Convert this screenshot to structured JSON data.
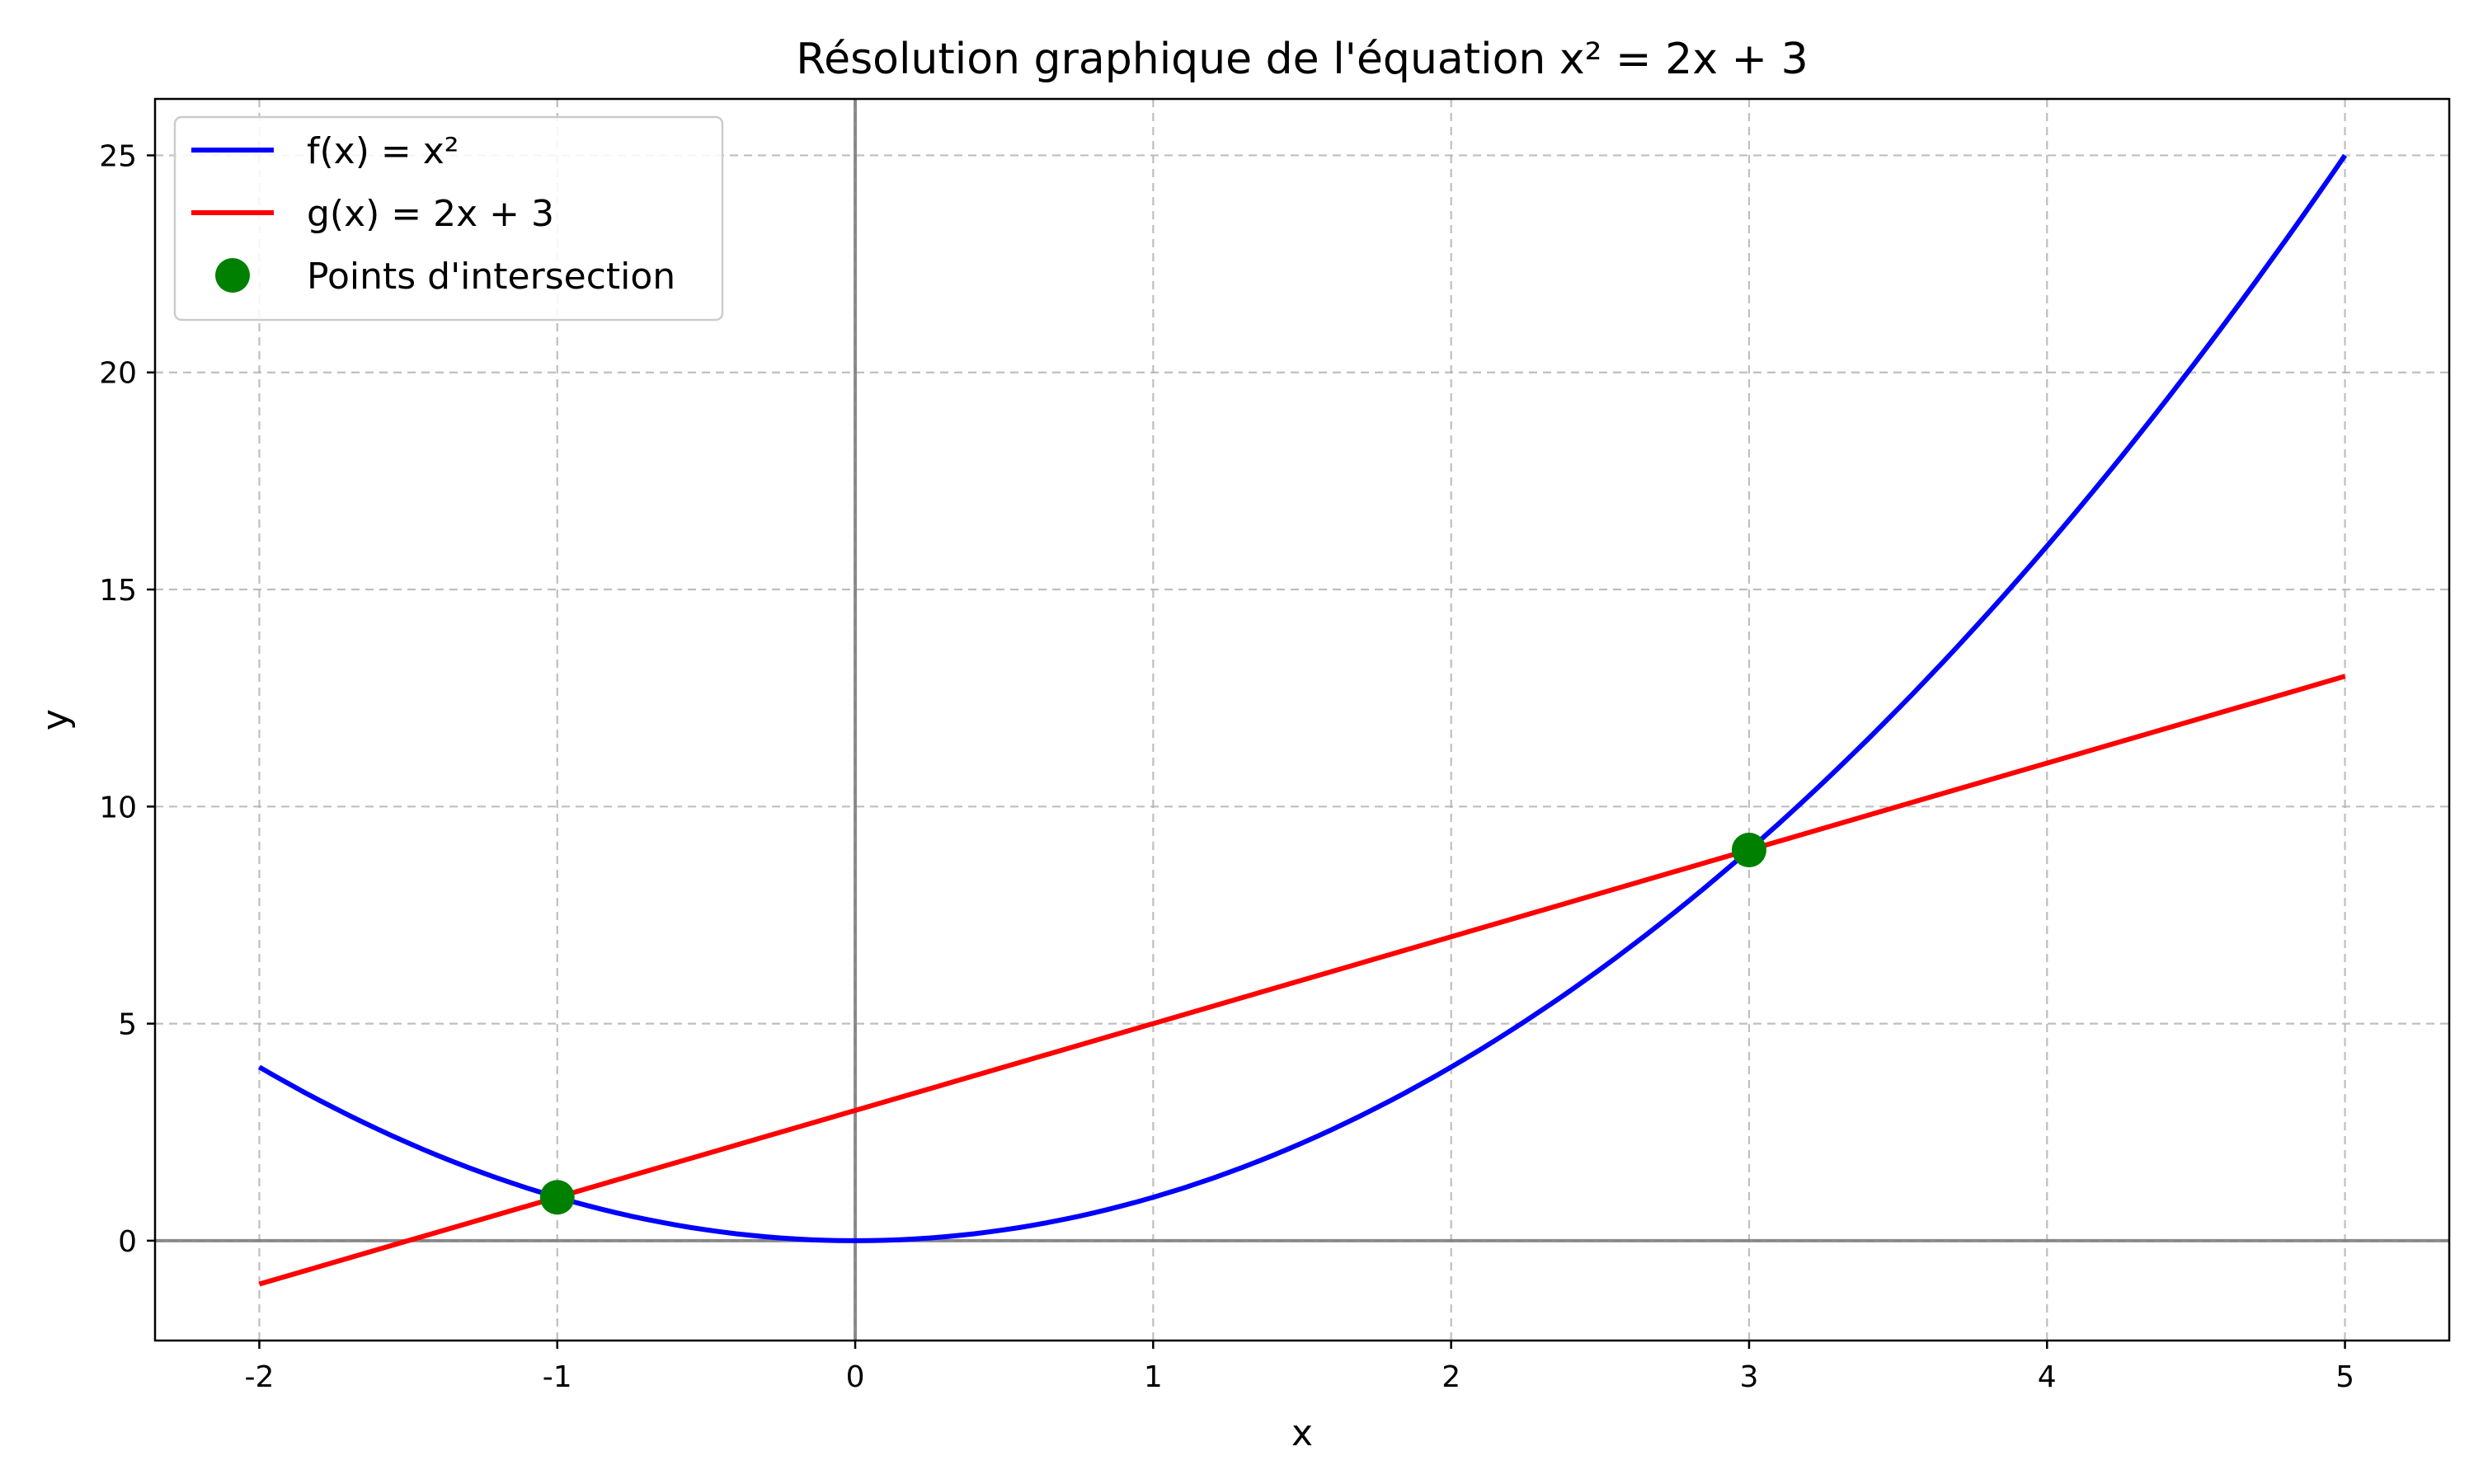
{
  "chart_data": {
    "type": "line",
    "title": "Résolution graphique de l'équation x² = 2x + 3",
    "xlabel": "x",
    "ylabel": "y",
    "xlim": [
      -2.35,
      5.35
    ],
    "ylim": [
      -2.3,
      26.3
    ],
    "xticks": [
      -2,
      -1,
      0,
      1,
      2,
      3,
      4,
      5
    ],
    "yticks": [
      0,
      5,
      10,
      15,
      20,
      25
    ],
    "xtick_labels": [
      "-2",
      "-1",
      "0",
      "1",
      "2",
      "3",
      "4",
      "5"
    ],
    "ytick_labels": [
      "0",
      "5",
      "10",
      "15",
      "20",
      "25"
    ],
    "grid": true,
    "grid_style": "dashed",
    "reference_lines": [
      "x = 0",
      "y = 0"
    ],
    "legend_position": "top-left",
    "series": [
      {
        "name": "f(x) = x²",
        "color": "#0000ff",
        "kind": "line",
        "x": [
          -2,
          -1.5,
          -1,
          -0.5,
          0,
          0.5,
          1,
          1.5,
          2,
          2.5,
          3,
          3.5,
          4,
          4.5,
          5
        ],
        "y": [
          4,
          2.25,
          1,
          0.25,
          0,
          0.25,
          1,
          2.25,
          4,
          6.25,
          9,
          12.25,
          16,
          20.25,
          25
        ]
      },
      {
        "name": "g(x) = 2x + 3",
        "color": "#ff0000",
        "kind": "line",
        "x": [
          -2,
          5
        ],
        "y": [
          -1,
          13
        ]
      },
      {
        "name": "Points d'intersection",
        "color": "#008000",
        "kind": "scatter",
        "x": [
          -1,
          3
        ],
        "y": [
          1,
          9
        ]
      }
    ]
  }
}
